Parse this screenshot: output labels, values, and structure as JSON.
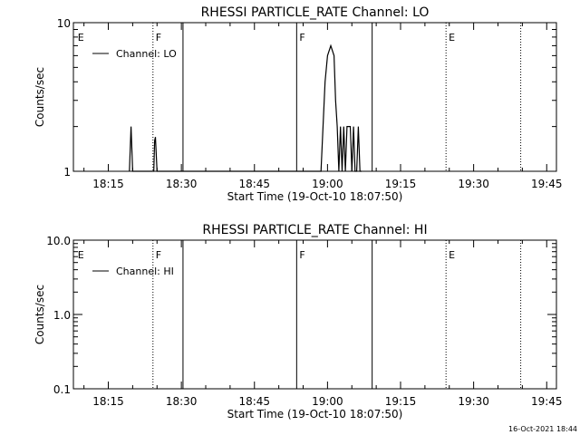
{
  "footer": {
    "timestamp": "16-Oct-2021 18:44"
  },
  "chart_data": [
    {
      "type": "line",
      "title": "RHESSI PARTICLE_RATE Channel: LO",
      "xlabel": "Start Time (19-Oct-10 18:07:50)",
      "ylabel": "Counts/sec",
      "yscale": "log",
      "xlim": [
        "18:07:50",
        "19:47:00"
      ],
      "ylim": [
        1,
        10
      ],
      "x_tick_labels": [
        "18:15",
        "18:30",
        "18:45",
        "19:00",
        "19:15",
        "19:30",
        "19:45"
      ],
      "y_tick_labels": [
        "1",
        "10"
      ],
      "series": [
        {
          "name": "Channel: LO",
          "x": [
            "18:19:20",
            "18:19:40",
            "18:20:00",
            "18:20:20",
            "18:24:20",
            "18:24:30",
            "18:24:40",
            "18:25:00",
            "18:58:40",
            "18:59:30",
            "19:00:00",
            "19:00:40",
            "19:01:20",
            "19:01:40",
            "19:02:00",
            "19:02:20",
            "19:02:40",
            "19:03:00",
            "19:03:20",
            "19:03:40",
            "19:04:00",
            "19:04:20",
            "19:04:40",
            "19:05:00",
            "19:05:20",
            "19:05:40",
            "19:06:00",
            "19:06:20",
            "19:06:40",
            "19:07:00"
          ],
          "y": [
            1,
            2,
            1,
            1,
            1,
            1.6,
            1.7,
            1,
            1,
            4,
            6,
            7,
            6,
            3,
            2,
            1,
            2,
            1,
            2,
            1,
            2,
            2,
            2,
            1,
            2,
            1,
            1,
            2,
            1,
            1
          ]
        }
      ],
      "markers": [
        {
          "time": "18:08:10",
          "label": "E",
          "line": "none"
        },
        {
          "time": "18:24:10",
          "label": "F",
          "line": "dotted"
        },
        {
          "time": "18:30:20",
          "label": "",
          "line": "solid"
        },
        {
          "time": "18:53:40",
          "label": "F",
          "line": "solid"
        },
        {
          "time": "19:09:10",
          "label": "",
          "line": "solid"
        },
        {
          "time": "19:24:20",
          "label": "E",
          "line": "dotted"
        },
        {
          "time": "19:39:40",
          "label": "",
          "line": "dotted"
        }
      ]
    },
    {
      "type": "line",
      "title": "RHESSI PARTICLE_RATE Channel: HI",
      "xlabel": "Start Time (19-Oct-10 18:07:50)",
      "ylabel": "Counts/sec",
      "yscale": "log",
      "xlim": [
        "18:07:50",
        "19:47:00"
      ],
      "ylim": [
        0.1,
        10
      ],
      "x_tick_labels": [
        "18:15",
        "18:30",
        "18:45",
        "19:00",
        "19:15",
        "19:30",
        "19:45"
      ],
      "y_tick_labels": [
        "0.1",
        "1.0",
        "10.0"
      ],
      "series": [
        {
          "name": "Channel: HI",
          "x": [],
          "y": []
        }
      ],
      "markers": [
        {
          "time": "18:08:10",
          "label": "E",
          "line": "none"
        },
        {
          "time": "18:24:10",
          "label": "F",
          "line": "dotted"
        },
        {
          "time": "18:30:20",
          "label": "",
          "line": "solid"
        },
        {
          "time": "18:53:40",
          "label": "F",
          "line": "solid"
        },
        {
          "time": "19:09:10",
          "label": "",
          "line": "solid"
        },
        {
          "time": "19:24:20",
          "label": "E",
          "line": "dotted"
        },
        {
          "time": "19:39:40",
          "label": "",
          "line": "dotted"
        }
      ]
    }
  ]
}
